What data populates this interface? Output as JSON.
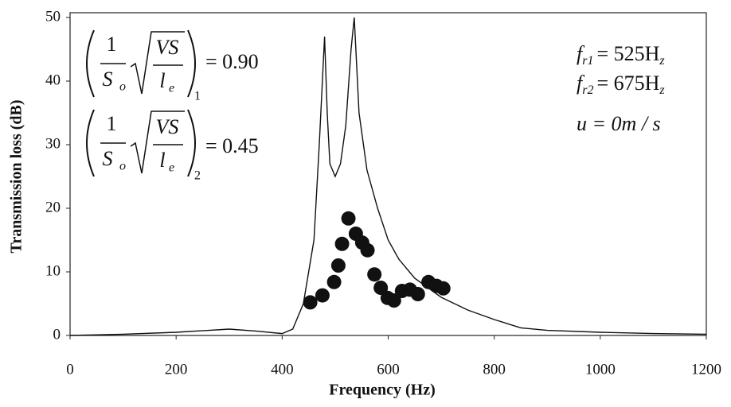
{
  "chart_data": {
    "type": "line",
    "x_label": "Frequency (Hz)",
    "y_label": "Transmission loss (dB)",
    "xlim": [
      0,
      1200
    ],
    "ylim": [
      0,
      50
    ],
    "xticks": [
      0,
      200,
      400,
      600,
      800,
      1000,
      1200
    ],
    "yticks": [
      0,
      10,
      20,
      30,
      40,
      50
    ],
    "series": [
      {
        "type": "line",
        "color": "#111111",
        "x": [
          0,
          100,
          200,
          300,
          350,
          400,
          420,
          440,
          460,
          470,
          480,
          485,
          490,
          500,
          510,
          520,
          530,
          536,
          545,
          560,
          580,
          600,
          620,
          650,
          700,
          750,
          800,
          850,
          900,
          1000,
          1100,
          1200
        ],
        "values": [
          0,
          0.2,
          0.5,
          1,
          0.7,
          0.3,
          1,
          5,
          15,
          30,
          47,
          35,
          27,
          25,
          27,
          33,
          45,
          50,
          35,
          26,
          20,
          15,
          12,
          9,
          6,
          4,
          2.5,
          1.2,
          0.8,
          0.5,
          0.3,
          0.2
        ]
      },
      {
        "type": "scatter",
        "color": "#111111",
        "x": [
          453,
          476,
          498,
          506,
          513,
          525,
          539,
          551,
          561,
          574,
          586,
          599,
          611,
          626,
          641,
          656,
          676,
          691,
          704
        ],
        "values": [
          5.2,
          6.3,
          8.4,
          11,
          14.4,
          18.4,
          16,
          14.6,
          13.4,
          9.6,
          7.5,
          5.9,
          5.5,
          7,
          7.2,
          6.5,
          8.4,
          7.8,
          7.4
        ]
      }
    ],
    "formula": {
      "numerator": "1",
      "denominator": "S",
      "denominator_sub": "o",
      "root_top": "VS",
      "root_bottom": "l",
      "root_bottom_sub": "e"
    },
    "formula_values": [
      {
        "sub": "1",
        "text": "= 0.90"
      },
      {
        "sub": "2",
        "text": "= 0.45"
      }
    ],
    "conditions": [
      {
        "main": "f",
        "sub": "r1",
        "text": "= 525H",
        "unit_sub": "z"
      },
      {
        "main": "f",
        "sub": "r2",
        "text": "= 675H",
        "unit_sub": "z"
      },
      {
        "main": "u = 0m / s"
      }
    ]
  }
}
